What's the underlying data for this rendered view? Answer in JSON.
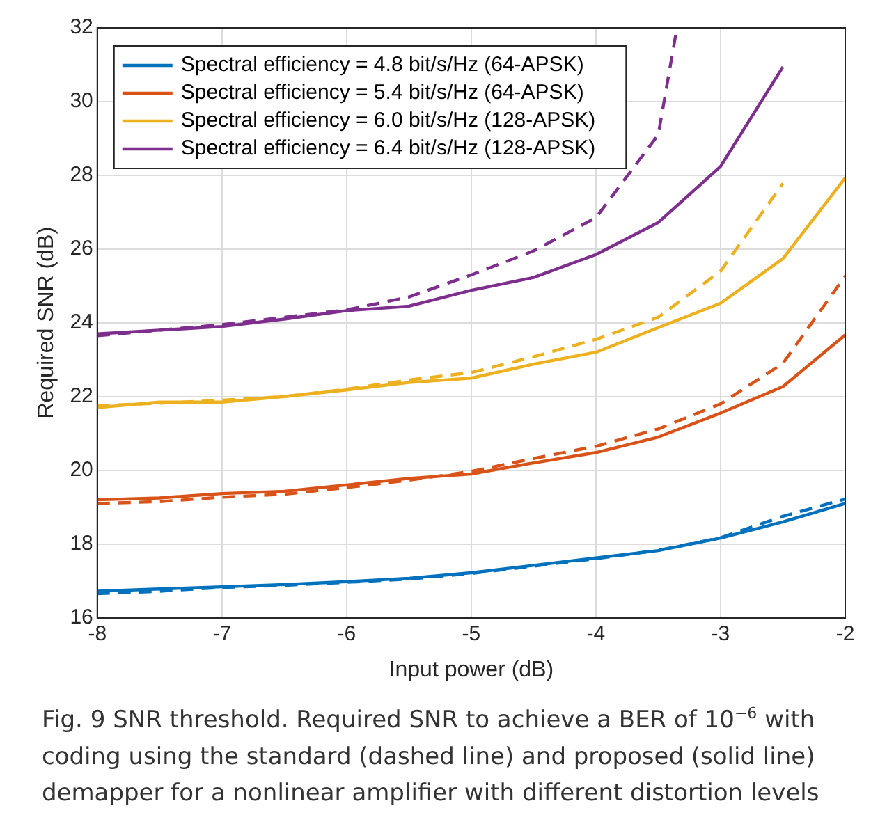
{
  "chart_data": {
    "type": "line",
    "xlabel": "Input power (dB)",
    "ylabel": "Required SNR (dB)",
    "x": [
      -8,
      -7.5,
      -7,
      -6.5,
      -6,
      -5.5,
      -5,
      -4.5,
      -4,
      -3.5,
      -3,
      -2.5,
      -2
    ],
    "xlim": [
      -8,
      -2
    ],
    "xticks": [
      -8,
      -7,
      -6,
      -5,
      -4,
      -3,
      -2
    ],
    "ylim": [
      16,
      32
    ],
    "yticks": [
      16,
      18,
      20,
      22,
      24,
      26,
      28,
      30,
      32
    ],
    "grid": true,
    "legend": "top left",
    "marker": "none",
    "series": [
      {
        "name": "Spectral efficiency = 4.8 bit/s/Hz (64-APSK)",
        "color": "#0072bd",
        "line_style": "solid",
        "values": [
          16.72,
          16.78,
          16.84,
          16.9,
          16.98,
          17.07,
          17.22,
          17.42,
          17.62,
          17.82,
          18.16,
          18.6,
          19.1
        ]
      },
      {
        "name": "Spectral efficiency = 5.4 bit/s/Hz (64-APSK)",
        "color": "#d95319",
        "line_style": "solid",
        "values": [
          19.2,
          19.25,
          19.37,
          19.43,
          19.6,
          19.78,
          19.9,
          20.2,
          20.48,
          20.9,
          21.55,
          22.27,
          23.67
        ]
      },
      {
        "name": "Spectral efficiency = 6.0 bit/s/Hz (128-APSK)",
        "color": "#edb120",
        "line_style": "solid",
        "values": [
          21.7,
          21.85,
          21.85,
          22.0,
          22.18,
          22.38,
          22.5,
          22.88,
          23.2,
          23.87,
          24.53,
          25.74,
          27.93
        ]
      },
      {
        "name": "Spectral efficiency = 6.4 bit/s/Hz (128-APSK)",
        "color": "#7e2f8e",
        "line_style": "solid",
        "values": [
          23.7,
          23.8,
          23.9,
          24.1,
          24.33,
          24.45,
          24.88,
          25.23,
          25.85,
          26.72,
          28.24,
          30.94,
          null
        ]
      },
      {
        "color": "#0072bd",
        "line_style": "dashed",
        "values": [
          16.65,
          16.72,
          16.82,
          16.88,
          16.96,
          17.05,
          17.2,
          17.4,
          17.6,
          17.83,
          18.17,
          18.75,
          19.22
        ]
      },
      {
        "color": "#d95319",
        "line_style": "dashed",
        "values": [
          19.1,
          19.15,
          19.27,
          19.35,
          19.53,
          19.73,
          19.97,
          20.32,
          20.65,
          21.12,
          21.8,
          22.9,
          25.27
        ]
      },
      {
        "color": "#edb120",
        "line_style": "dashed",
        "values": [
          21.75,
          21.82,
          21.9,
          22.0,
          22.2,
          22.45,
          22.65,
          23.08,
          23.55,
          24.15,
          25.4,
          27.78,
          null
        ]
      },
      {
        "color": "#7e2f8e",
        "line_style": "dashed",
        "x": [
          -8,
          -7.5,
          -7,
          -6.5,
          -6,
          -5.5,
          -5,
          -4.5,
          -4,
          -3.5,
          -3.35
        ],
        "values": [
          23.65,
          23.8,
          23.95,
          24.15,
          24.35,
          24.7,
          25.3,
          25.95,
          26.85,
          29.1,
          32
        ]
      }
    ],
    "annotations": [
      "Fig. 9 SNR threshold. Required SNR to achieve a BER of 10$^{−6}$ with coding using the standard (dashed line) and proposed (solid line) demapper for a nonlinear amplifier with different distortion levels"
    ]
  }
}
